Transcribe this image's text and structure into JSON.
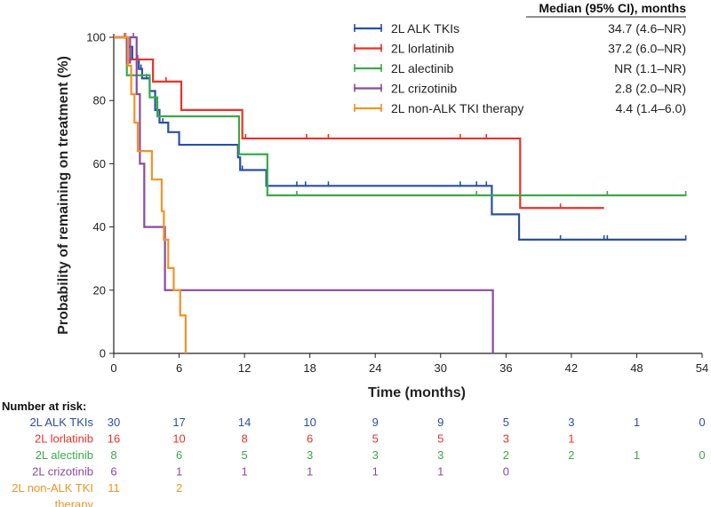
{
  "chart_data": {
    "type": "line",
    "subtype": "kaplan-meier",
    "xlabel": "Time (months)",
    "ylabel": "Probability of remaining on treatment (%)",
    "xlim": [
      0,
      54
    ],
    "ylim": [
      0,
      100
    ],
    "xticks": [
      0,
      6,
      12,
      18,
      24,
      30,
      36,
      42,
      48,
      54
    ],
    "yticks": [
      0,
      20,
      40,
      60,
      80,
      100
    ],
    "legend_position": "top-right",
    "median_header": "Median (95% CI), months",
    "series": [
      {
        "name": "2L ALK TKIs",
        "color": "#2a4fa6",
        "median": "34.7 (4.6–NR)",
        "steps": [
          [
            0,
            100
          ],
          [
            1,
            100
          ],
          [
            1.2,
            97
          ],
          [
            1.7,
            93
          ],
          [
            2.3,
            90
          ],
          [
            2.6,
            87
          ],
          [
            3.3,
            83
          ],
          [
            3.8,
            77
          ],
          [
            4.2,
            73
          ],
          [
            5,
            70
          ],
          [
            6,
            66
          ],
          [
            11.4,
            62
          ],
          [
            11.6,
            58
          ],
          [
            14,
            53
          ],
          [
            34.7,
            44
          ],
          [
            37.2,
            36
          ],
          [
            52.5,
            36
          ]
        ],
        "censors": [
          [
            1,
            100
          ],
          [
            1.5,
            97
          ],
          [
            2.5,
            90
          ],
          [
            3,
            87
          ],
          [
            4.5,
            73
          ],
          [
            11.8,
            58
          ],
          [
            16.8,
            53
          ],
          [
            17.6,
            53
          ],
          [
            19.7,
            53
          ],
          [
            31.8,
            53
          ],
          [
            33.3,
            53
          ],
          [
            34.2,
            53
          ],
          [
            41,
            36
          ],
          [
            45,
            36
          ],
          [
            45.3,
            36
          ],
          [
            52.5,
            36
          ]
        ]
      },
      {
        "name": "2L lorlatinib",
        "color": "#e8332a",
        "median": "37.2 (6.0–NR)",
        "steps": [
          [
            0,
            100
          ],
          [
            1,
            100
          ],
          [
            1.3,
            93
          ],
          [
            3,
            93
          ],
          [
            3.6,
            86
          ],
          [
            5.8,
            86
          ],
          [
            6.2,
            77
          ],
          [
            11.6,
            77
          ],
          [
            11.8,
            68
          ],
          [
            37.2,
            68
          ],
          [
            37.3,
            46
          ],
          [
            45,
            46
          ]
        ],
        "censors": [
          [
            1,
            100
          ],
          [
            2.2,
            93
          ],
          [
            4.8,
            86
          ],
          [
            12.1,
            68
          ],
          [
            17.7,
            68
          ],
          [
            19.7,
            68
          ],
          [
            31.8,
            68
          ],
          [
            34.2,
            68
          ],
          [
            41,
            46
          ]
        ]
      },
      {
        "name": "2L alectinib",
        "color": "#3aaa48",
        "median": "NR (1.1–NR)",
        "steps": [
          [
            0,
            100
          ],
          [
            1.1,
            100
          ],
          [
            1.2,
            88
          ],
          [
            2.8,
            88
          ],
          [
            3.3,
            81
          ],
          [
            4,
            75
          ],
          [
            11.4,
            75
          ],
          [
            11.5,
            63
          ],
          [
            14,
            63
          ],
          [
            14.1,
            50
          ],
          [
            52.5,
            50
          ]
        ],
        "censors": [
          [
            1.1,
            100
          ],
          [
            16.8,
            50
          ],
          [
            33.3,
            50
          ],
          [
            45.3,
            50
          ],
          [
            52.5,
            50
          ]
        ]
      },
      {
        "name": "2L crizotinib",
        "color": "#8a4aa0",
        "median": "2.8 (2.0–NR)",
        "steps": [
          [
            0,
            100
          ],
          [
            1,
            100
          ],
          [
            1.2,
            92
          ],
          [
            1.5,
            100
          ],
          [
            2.0,
            100
          ],
          [
            2.1,
            82
          ],
          [
            2.4,
            60
          ],
          [
            2.8,
            40
          ],
          [
            4.6,
            40
          ],
          [
            4.7,
            20
          ],
          [
            34.7,
            20
          ],
          [
            34.8,
            0
          ]
        ],
        "censors": [
          [
            1,
            100
          ],
          [
            1.8,
            100
          ]
        ]
      },
      {
        "name": "2L non-ALK TKI therapy",
        "color": "#f39325",
        "median": "4.4 (1.4–6.0)",
        "steps": [
          [
            0,
            100
          ],
          [
            1.1,
            100
          ],
          [
            1.3,
            91
          ],
          [
            1.6,
            82
          ],
          [
            1.9,
            73
          ],
          [
            2.2,
            64
          ],
          [
            3.4,
            64
          ],
          [
            3.5,
            55
          ],
          [
            4.2,
            55
          ],
          [
            4.4,
            45
          ],
          [
            4.6,
            36
          ],
          [
            5,
            27
          ],
          [
            5.5,
            20
          ],
          [
            6,
            20
          ],
          [
            6.1,
            12
          ],
          [
            6.6,
            12
          ],
          [
            6.6,
            0
          ]
        ],
        "censors": [
          [
            1.1,
            100
          ],
          [
            4.4,
            45
          ]
        ]
      }
    ],
    "risk_table": {
      "header": "Number at risk:",
      "rows": [
        {
          "label": "2L ALK TKIs",
          "label2": "",
          "values": [
            "30",
            "17",
            "14",
            "10",
            "9",
            "9",
            "5",
            "3",
            "1",
            "0"
          ]
        },
        {
          "label": "2L lorlatinib",
          "label2": "",
          "values": [
            "16",
            "10",
            "8",
            "6",
            "5",
            "5",
            "3",
            "1",
            "",
            ""
          ]
        },
        {
          "label": "2L alectinib",
          "label2": "",
          "values": [
            "8",
            "6",
            "5",
            "3",
            "3",
            "3",
            "2",
            "2",
            "1",
            "0"
          ]
        },
        {
          "label": "2L crizotinib",
          "label2": "",
          "values": [
            "6",
            "1",
            "1",
            "1",
            "1",
            "1",
            "0",
            "",
            "",
            ""
          ]
        },
        {
          "label": "2L non-ALK TKI",
          "label2": "therapy",
          "values": [
            "11",
            "2",
            "",
            "",
            "",
            "",
            "",
            "",
            "",
            ""
          ]
        }
      ]
    }
  }
}
